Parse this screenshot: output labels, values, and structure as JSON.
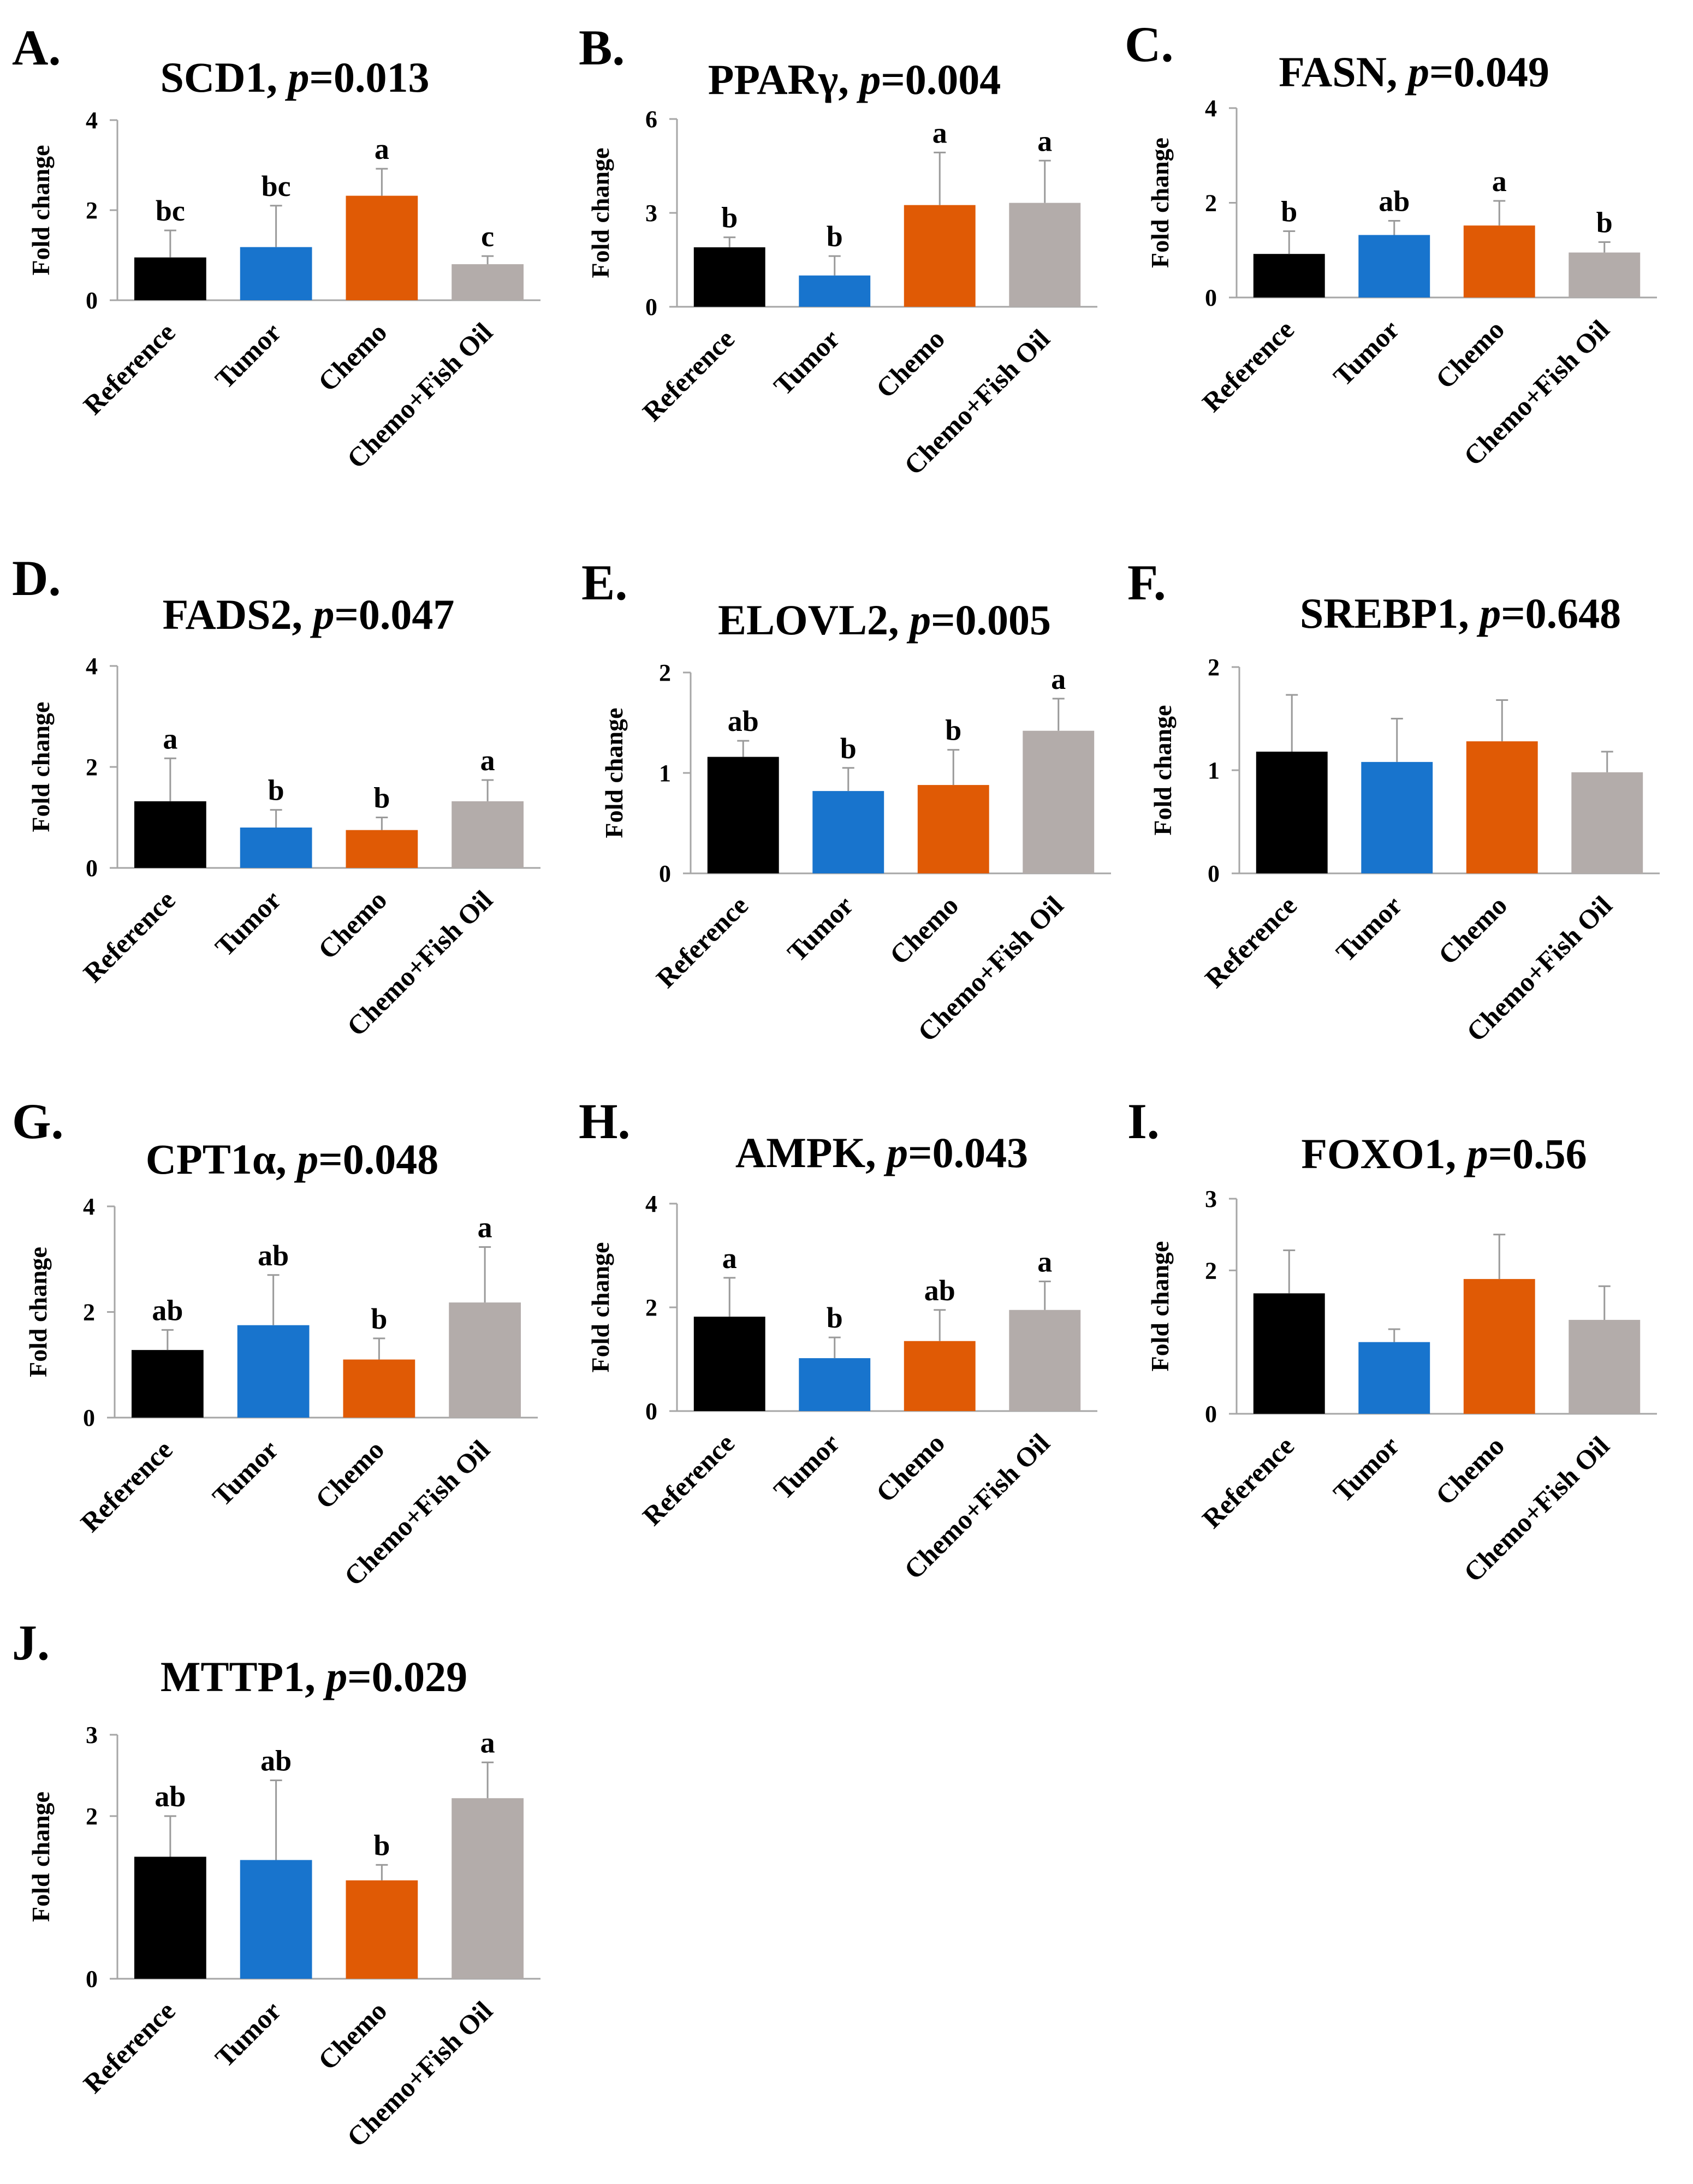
{
  "colors": {
    "Reference": "#000000",
    "Tumor": "#1874cd",
    "Chemo": "#e05a05",
    "Chemo+Fish Oil": "#b3acaa",
    "axis": "#a6a6a6",
    "error": "#9a9a9a"
  },
  "ylabel": "Fold change",
  "categories": [
    "Reference",
    "Tumor",
    "Chemo",
    "Chemo+Fish Oil"
  ],
  "chart_data": [
    {
      "type": "bar",
      "panel": "A.",
      "gene": "SCD1",
      "p_label": "p",
      "p_value": "=0.013",
      "ylabel": "Fold change",
      "ylim": [
        0,
        4
      ],
      "yticks": [
        "0",
        "2",
        "4"
      ],
      "ytick_values": [
        0,
        2,
        4
      ],
      "categories": [
        "Reference",
        "Tumor",
        "Chemo",
        "Chemo+Fish Oil"
      ],
      "values": [
        0.95,
        1.18,
        2.32,
        0.8
      ],
      "errors": [
        0.6,
        0.92,
        0.6,
        0.18
      ],
      "labels": [
        "bc",
        "bc",
        "a",
        "c"
      ]
    },
    {
      "type": "bar",
      "panel": "B.",
      "gene": "PPARγ",
      "p_label": "p",
      "p_value": "=0.004",
      "ylabel": "Fold change",
      "ylim": [
        0,
        6
      ],
      "yticks": [
        "0",
        "3",
        "6"
      ],
      "ytick_values": [
        0,
        3,
        6
      ],
      "categories": [
        "Reference",
        "Tumor",
        "Chemo",
        "Chemo+Fish Oil"
      ],
      "values": [
        1.9,
        1.0,
        3.25,
        3.32
      ],
      "errors": [
        0.32,
        0.62,
        1.68,
        1.35
      ],
      "labels": [
        "b",
        "b",
        "a",
        "a"
      ]
    },
    {
      "type": "bar",
      "panel": "C.",
      "gene": "FASN",
      "p_label": "p",
      "p_value": "=0.049",
      "ylabel": "Fold change",
      "ylim": [
        0,
        4
      ],
      "yticks": [
        "0",
        "2",
        "4"
      ],
      "ytick_values": [
        0,
        2,
        4
      ],
      "categories": [
        "Reference",
        "Tumor",
        "Chemo",
        "Chemo+Fish Oil"
      ],
      "values": [
        0.92,
        1.32,
        1.52,
        0.95
      ],
      "errors": [
        0.48,
        0.3,
        0.52,
        0.22
      ],
      "labels": [
        "b",
        "ab",
        "a",
        "b"
      ]
    },
    {
      "type": "bar",
      "panel": "D.",
      "gene": "FADS2",
      "p_label": "p",
      "p_value": "=0.047",
      "ylabel": "Fold change",
      "ylim": [
        0,
        4
      ],
      "yticks": [
        "0",
        "2",
        "4"
      ],
      "ytick_values": [
        0,
        2,
        4
      ],
      "categories": [
        "Reference",
        "Tumor",
        "Chemo",
        "Chemo+Fish Oil"
      ],
      "values": [
        1.32,
        0.8,
        0.75,
        1.32
      ],
      "errors": [
        0.85,
        0.35,
        0.25,
        0.42
      ],
      "labels": [
        "a",
        "b",
        "b",
        "a"
      ]
    },
    {
      "type": "bar",
      "panel": "E.",
      "gene": "ELOVL2",
      "p_label": "p",
      "p_value": "=0.005",
      "ylabel": "Fold change",
      "ylim": [
        0,
        2
      ],
      "yticks": [
        "0",
        "1",
        "2"
      ],
      "ytick_values": [
        0,
        1,
        2
      ],
      "categories": [
        "Reference",
        "Tumor",
        "Chemo",
        "Chemo+Fish Oil"
      ],
      "values": [
        1.16,
        0.82,
        0.88,
        1.42
      ],
      "errors": [
        0.16,
        0.23,
        0.35,
        0.32
      ],
      "labels": [
        "ab",
        "b",
        "b",
        "a"
      ]
    },
    {
      "type": "bar",
      "panel": "F.",
      "gene": "SREBP1",
      "p_label": "p",
      "p_value": "=0.648",
      "ylabel": "Fold change",
      "ylim": [
        0,
        2
      ],
      "yticks": [
        "0",
        "1",
        "2"
      ],
      "ytick_values": [
        0,
        1,
        2
      ],
      "categories": [
        "Reference",
        "Tumor",
        "Chemo",
        "Chemo+Fish Oil"
      ],
      "values": [
        1.18,
        1.08,
        1.28,
        0.98
      ],
      "errors": [
        0.55,
        0.42,
        0.4,
        0.2
      ],
      "labels": [
        "",
        "",
        "",
        ""
      ]
    },
    {
      "type": "bar",
      "panel": "G.",
      "gene": "CPT1α",
      "p_label": "p",
      "p_value": "=0.048",
      "ylabel": "Fold change",
      "ylim": [
        0,
        4
      ],
      "yticks": [
        "0",
        "2",
        "4"
      ],
      "ytick_values": [
        0,
        2,
        4
      ],
      "categories": [
        "Reference",
        "Tumor",
        "Chemo",
        "Chemo+Fish Oil"
      ],
      "values": [
        1.28,
        1.75,
        1.1,
        2.18
      ],
      "errors": [
        0.38,
        0.95,
        0.4,
        1.05
      ],
      "labels": [
        "ab",
        "ab",
        "b",
        "a"
      ]
    },
    {
      "type": "bar",
      "panel": "H.",
      "gene": "AMPK",
      "p_label": "p",
      "p_value": "=0.043",
      "ylabel": "Fold change",
      "ylim": [
        0,
        4
      ],
      "yticks": [
        "0",
        "2",
        "4"
      ],
      "ytick_values": [
        0,
        2,
        4
      ],
      "categories": [
        "Reference",
        "Tumor",
        "Chemo",
        "Chemo+Fish Oil"
      ],
      "values": [
        1.82,
        1.02,
        1.35,
        1.95
      ],
      "errors": [
        0.75,
        0.4,
        0.6,
        0.55
      ],
      "labels": [
        "a",
        "b",
        "ab",
        "a"
      ]
    },
    {
      "type": "bar",
      "panel": "I.",
      "gene": "FOXO1",
      "p_label": "p",
      "p_value": "=0.56",
      "ylabel": "Fold change",
      "ylim": [
        0,
        3
      ],
      "yticks": [
        "0",
        "2",
        "3"
      ],
      "ytick_values": [
        0,
        2,
        3
      ],
      "categories": [
        "Reference",
        "Tumor",
        "Chemo",
        "Chemo+Fish Oil"
      ],
      "values": [
        1.68,
        1.0,
        1.88,
        1.31
      ],
      "errors": [
        0.6,
        0.18,
        0.62,
        0.47
      ],
      "labels": [
        "",
        "",
        "",
        ""
      ]
    },
    {
      "type": "bar",
      "panel": "J.",
      "gene": "MTTP1",
      "p_label": "p",
      "p_value": "=0.029",
      "ylabel": "Fold change",
      "ylim": [
        0,
        3
      ],
      "yticks": [
        "0",
        "2",
        "3"
      ],
      "ytick_values": [
        0,
        2,
        3
      ],
      "categories": [
        "Reference",
        "Tumor",
        "Chemo",
        "Chemo+Fish Oil"
      ],
      "values": [
        1.5,
        1.46,
        1.21,
        2.22
      ],
      "errors": [
        0.5,
        0.98,
        0.19,
        0.44
      ],
      "labels": [
        "ab",
        "ab",
        "b",
        "a"
      ]
    }
  ]
}
